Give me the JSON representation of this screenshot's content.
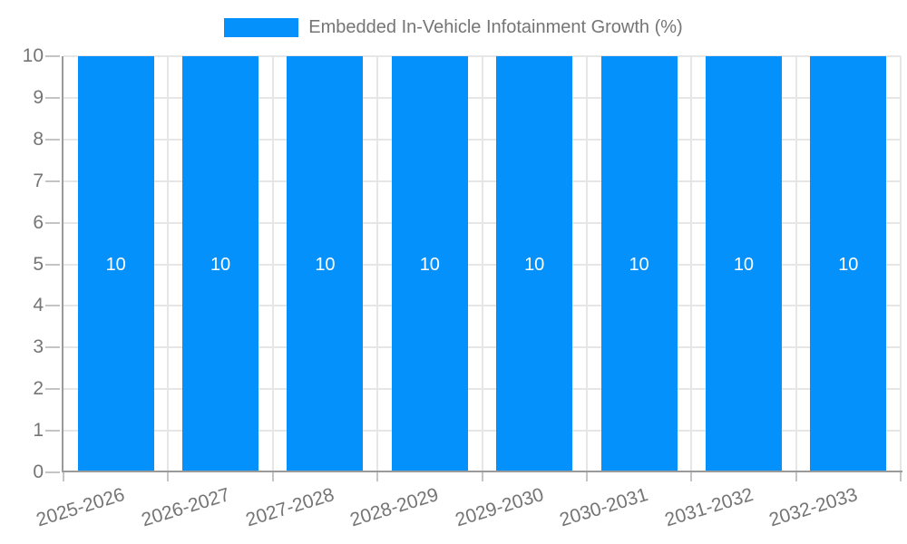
{
  "chart_data": {
    "type": "bar",
    "title": "Embedded In-Vehicle Infotainment Growth (%)",
    "categories": [
      "2025-2026",
      "2026-2027",
      "2027-2028",
      "2028-2029",
      "2029-2030",
      "2030-2031",
      "2031-2032",
      "2032-2033"
    ],
    "values": [
      10,
      10,
      10,
      10,
      10,
      10,
      10,
      10
    ],
    "bar_labels": [
      "10",
      "10",
      "10",
      "10",
      "10",
      "10",
      "10",
      "10"
    ],
    "xlabel": "",
    "ylabel": "",
    "ylim": [
      0,
      10
    ],
    "y_ticks": [
      0,
      1,
      2,
      3,
      4,
      5,
      6,
      7,
      8,
      9,
      10
    ],
    "grid": "on",
    "legend_position": "top",
    "colors": {
      "bar": "#0591fb",
      "grid": "#e6e6e6",
      "axis": "#9a9a9a",
      "tick": "#c4c4c4",
      "text": "#757575",
      "bar_label": "#ffffff",
      "background": "#ffffff"
    }
  }
}
